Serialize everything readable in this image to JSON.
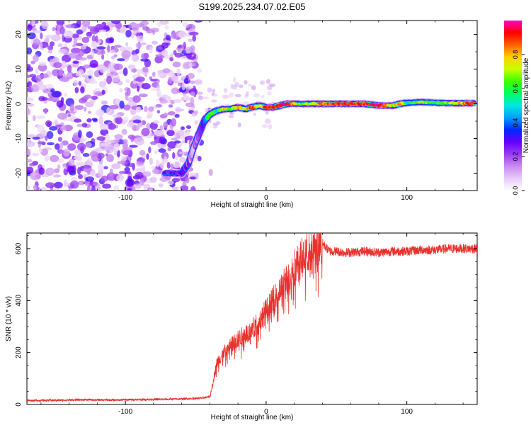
{
  "title": "S199.2025.234.07.02.E05",
  "chart_data": [
    {
      "type": "heatmap",
      "title": "S199.2025.234.07.02.E05",
      "xlabel": "Height of straight line (km)",
      "ylabel": "Frequency (Hz)",
      "xlim": [
        -170,
        150
      ],
      "ylim": [
        -25,
        24
      ],
      "xticks": [
        -100,
        0,
        100
      ],
      "yticks": [
        -20,
        -10,
        0,
        10,
        20
      ],
      "colorbar": {
        "label": "Normalized spectral amplitude",
        "range": [
          0,
          1
        ],
        "ticks": [
          "0.0",
          "0.2",
          "0.4",
          "0.6",
          "0.8"
        ],
        "colormap": [
          "#ffffff",
          "#e6cbf8",
          "#c98af0",
          "#9a3cf0",
          "#6400ff",
          "#0028ff",
          "#00a0ff",
          "#00e8e0",
          "#00ff60",
          "#3cff00",
          "#c8ff00",
          "#ffd000",
          "#ff6000",
          "#ff0000",
          "#ff00c0"
        ]
      },
      "noise_region_x": [
        -170,
        -50
      ],
      "ridge": {
        "x": [
          -72,
          -60,
          -55,
          -52,
          -48,
          -44,
          -40,
          -35,
          -30,
          -25,
          -20,
          -15,
          -10,
          -5,
          0,
          5,
          10,
          15,
          25,
          40,
          55,
          70,
          80,
          90,
          95,
          100,
          110,
          120,
          130,
          140,
          148
        ],
        "frequency": [
          -20,
          -20,
          -17,
          -13,
          -9,
          -5,
          -3,
          -2,
          -1.5,
          -1.5,
          -1,
          -1.5,
          -1,
          -0.5,
          -1,
          -1,
          -0.5,
          0,
          0,
          0,
          0,
          0,
          -0.5,
          -0.5,
          0,
          0.3,
          0.5,
          0.3,
          0.2,
          0.2,
          0.2
        ],
        "amplitude": [
          0.25,
          0.3,
          0.2,
          0.15,
          0.2,
          0.35,
          0.7,
          0.5,
          0.8,
          0.6,
          0.8,
          0.7,
          0.9,
          0.7,
          0.9,
          0.85,
          0.95,
          0.95,
          0.6,
          0.85,
          0.9,
          0.9,
          0.95,
          0.7,
          0.9,
          0.5,
          0.7,
          0.6,
          0.7,
          0.8,
          0.95
        ]
      }
    },
    {
      "type": "line",
      "xlabel": "Height of straight line (km)",
      "ylabel": "SNR (10 * v/v)",
      "xlim": [
        -170,
        150
      ],
      "ylim": [
        0,
        660
      ],
      "xticks": [
        -100,
        0,
        100
      ],
      "yticks": [
        0,
        200,
        400,
        600
      ],
      "color": "#e8322d",
      "series": [
        {
          "x": [
            -170,
            -150,
            -130,
            -110,
            -90,
            -70,
            -55,
            -45,
            -40,
            -38,
            -35,
            -30,
            -25,
            -20,
            -15,
            -10,
            -5,
            0,
            5,
            10,
            15,
            20,
            25,
            30,
            35,
            40,
            45,
            50,
            55,
            60,
            70,
            80,
            90,
            100,
            110,
            120,
            130,
            140,
            150
          ],
          "values": [
            15,
            16,
            18,
            17,
            19,
            20,
            22,
            25,
            30,
            80,
            160,
            200,
            230,
            250,
            270,
            290,
            320,
            360,
            400,
            440,
            480,
            530,
            560,
            590,
            600,
            620,
            590,
            590,
            585,
            585,
            590,
            585,
            590,
            590,
            595,
            595,
            600,
            600,
            600
          ]
        }
      ]
    }
  ]
}
